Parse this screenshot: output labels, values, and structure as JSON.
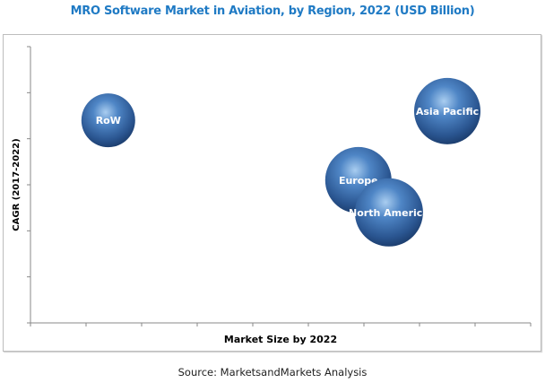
{
  "chart_data": {
    "type": "bubble",
    "title": "MRO Software Market in Aviation, by Region, 2022 (USD Billion)",
    "xlabel": "Market Size by 2022",
    "ylabel": "CAGR (2017-2022)",
    "xlim": [
      0,
      9
    ],
    "ylim": [
      0,
      6
    ],
    "grid": false,
    "bubble_color": "#3f6fae",
    "points": [
      {
        "label": "RoW",
        "x": 1.4,
        "y": 4.4,
        "size": 30
      },
      {
        "label": "Asia Pacific",
        "x": 7.5,
        "y": 4.6,
        "size": 37
      },
      {
        "label": "Europe",
        "x": 5.9,
        "y": 3.1,
        "size": 37
      },
      {
        "label": "North America",
        "x": 6.45,
        "y": 2.4,
        "size": 38
      }
    ]
  },
  "source": "Source: MarketsandMarkets Analysis"
}
